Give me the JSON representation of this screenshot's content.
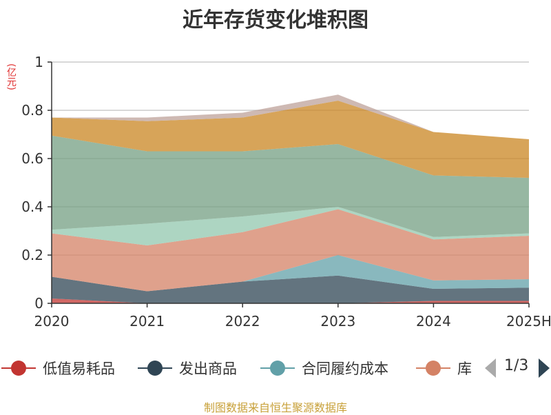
{
  "title": "近年存货变化堆积图",
  "unit": "(亿元)",
  "source": "制图数据来自恒生聚源数据库",
  "pager": {
    "text": "1/3"
  },
  "chart_data": {
    "type": "area",
    "stacked": true,
    "title": "近年存货变化堆积图",
    "ylabel": "(亿元)",
    "xlabel": "",
    "categories": [
      "2020",
      "2021",
      "2022",
      "2023",
      "2024",
      "2025H"
    ],
    "ylim": [
      0,
      1
    ],
    "yticks": [
      "0",
      "0.2",
      "0.4",
      "0.6",
      "0.8",
      "1"
    ],
    "grid": true,
    "legend_position": "bottom",
    "series": [
      {
        "name": "低值易耗品",
        "color": "#c23531",
        "values": [
          0.02,
          0.0,
          0.0,
          0.0,
          0.01,
          0.01
        ]
      },
      {
        "name": "发出商品",
        "color": "#2f4554",
        "values": [
          0.09,
          0.05,
          0.09,
          0.115,
          0.05,
          0.055
        ]
      },
      {
        "name": "合同履约成本",
        "color": "#61a0a8",
        "values": [
          0.0,
          0.0,
          0.0,
          0.085,
          0.035,
          0.035
        ]
      },
      {
        "name": "库",
        "color": "#d48265",
        "values": [
          0.18,
          0.19,
          0.205,
          0.19,
          0.17,
          0.18
        ]
      },
      {
        "color": "#91c7ae",
        "values": [
          0.015,
          0.09,
          0.065,
          0.01,
          0.01,
          0.01
        ]
      },
      {
        "color": "#749f83",
        "values": [
          0.39,
          0.3,
          0.27,
          0.26,
          0.255,
          0.23
        ]
      },
      {
        "color": "#ca8622",
        "values": [
          0.075,
          0.125,
          0.14,
          0.18,
          0.18,
          0.16
        ]
      },
      {
        "color": "#bda29a",
        "values": [
          0.0,
          0.015,
          0.02,
          0.025,
          0.0,
          0.0
        ]
      }
    ]
  }
}
